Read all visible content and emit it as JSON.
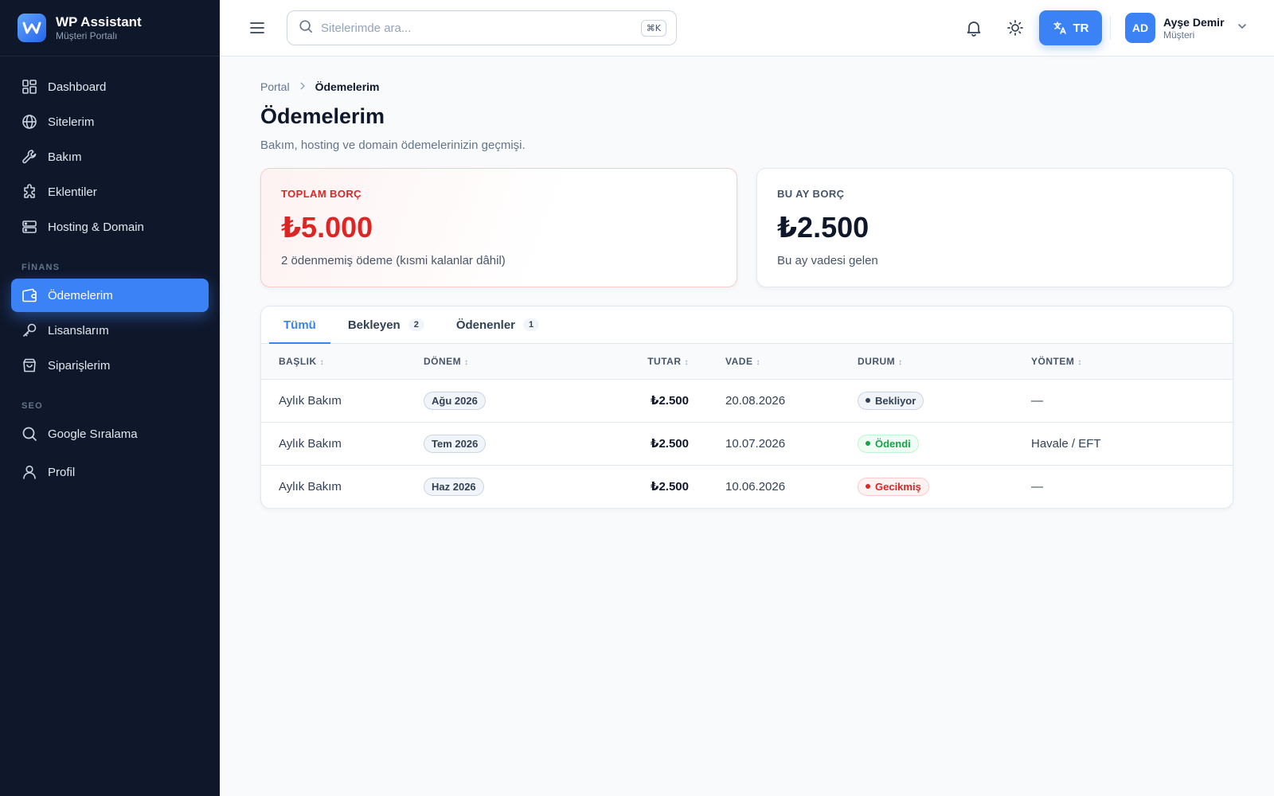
{
  "brand": {
    "title": "WP Assistant",
    "subtitle": "Müşteri Portalı"
  },
  "sidebar": {
    "items": [
      {
        "label": "Dashboard",
        "icon": "dashboard-icon"
      },
      {
        "label": "Sitelerim",
        "icon": "globe-icon"
      },
      {
        "label": "Bakım",
        "icon": "wrench-icon"
      },
      {
        "label": "Eklentiler",
        "icon": "puzzle-icon"
      },
      {
        "label": "Hosting & Domain",
        "icon": "server-icon"
      }
    ],
    "finance_section": "FİNANS",
    "finance_items": [
      {
        "label": "Ödemelerim",
        "icon": "wallet-icon",
        "active": true
      },
      {
        "label": "Lisanslarım",
        "icon": "key-icon"
      },
      {
        "label": "Siparişlerim",
        "icon": "shopping-bag-icon"
      }
    ],
    "seo_section": "SEO",
    "seo_items": [
      {
        "label": "Google Sıralama",
        "icon": "search-icon"
      },
      {
        "label": "Profil",
        "icon": "user-icon"
      }
    ]
  },
  "header": {
    "search_placeholder": "Sitelerimde ara...",
    "search_shortcut": "⌘K",
    "language": "TR",
    "user_initials": "AD",
    "user_name": "Ayşe Demir",
    "user_role": "Müşteri"
  },
  "breadcrumb": {
    "root": "Portal",
    "current": "Ödemelerim"
  },
  "page": {
    "title": "Ödemelerim",
    "description": "Bakım, hosting ve domain ödemelerinizin geçmişi."
  },
  "cards": {
    "total": {
      "label": "TOPLAM BORÇ",
      "value": "₺5.000",
      "note": "2 ödenmemiş ödeme (kısmi kalanlar dâhil)"
    },
    "month": {
      "label": "BU AY BORÇ",
      "value": "₺2.500",
      "note": "Bu ay vadesi gelen"
    }
  },
  "tabs": [
    {
      "label": "Tümü",
      "count": null,
      "active": true
    },
    {
      "label": "Bekleyen",
      "count": "2"
    },
    {
      "label": "Ödenenler",
      "count": "1"
    }
  ],
  "table": {
    "columns": [
      "BAŞLIK",
      "DÖNEM",
      "TUTAR",
      "VADE",
      "DURUM",
      "YÖNTEM"
    ],
    "rows": [
      {
        "title": "Aylık Bakım",
        "period": "Ağu 2026",
        "amount": "₺2.500",
        "due": "20.08.2026",
        "status": "Bekliyor",
        "status_type": "pending",
        "method": "—"
      },
      {
        "title": "Aylık Bakım",
        "period": "Tem 2026",
        "amount": "₺2.500",
        "due": "10.07.2026",
        "status": "Ödendi",
        "status_type": "paid",
        "method": "Havale / EFT"
      },
      {
        "title": "Aylık Bakım",
        "period": "Haz 2026",
        "amount": "₺2.500",
        "due": "10.06.2026",
        "status": "Gecikmiş",
        "status_type": "late",
        "method": "—"
      }
    ]
  },
  "colors": {
    "accent": "#3b82f6",
    "sidebar_bg": "#0f172a",
    "danger": "#dc2626",
    "success": "#16a34a"
  }
}
